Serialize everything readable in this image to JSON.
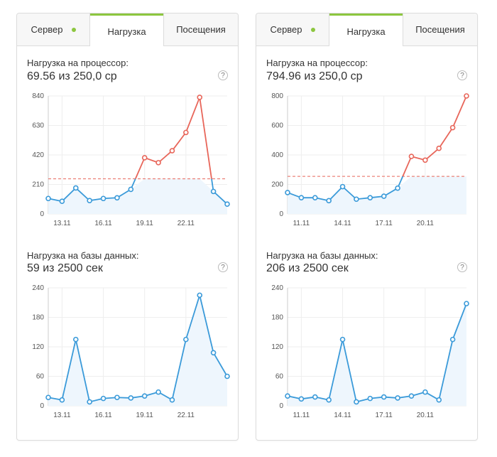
{
  "panels": [
    {
      "tabs": [
        {
          "label": "Сервер"
        },
        {
          "label": "Нагрузка"
        },
        {
          "label": "Посещения"
        }
      ],
      "active_tab": 1,
      "cpu": {
        "title": "Нагрузка на процессор:",
        "value": "69.56 из 250,0 ср",
        "help": "?"
      },
      "db": {
        "title": "Нагрузка на базы данных:",
        "value": "59 из 2500 сек",
        "help": "?"
      }
    },
    {
      "tabs": [
        {
          "label": "Сервер"
        },
        {
          "label": "Нагрузка"
        },
        {
          "label": "Посещения"
        }
      ],
      "active_tab": 1,
      "cpu": {
        "title": "Нагрузка на процессор:",
        "value": "794.96 из 250,0 ср",
        "help": "?"
      },
      "db": {
        "title": "Нагрузка на базы данных:",
        "value": "206 из 2500 сек",
        "help": "?"
      }
    }
  ],
  "colors": {
    "line": "#3a9ad9",
    "over": "#e8665a",
    "fill": "#eef6fd",
    "threshold": "#e8665a",
    "accent": "#8cc63f",
    "grid": "#eeeeee"
  },
  "chart_data": [
    {
      "type": "line",
      "ylim": [
        0,
        840
      ],
      "yticks": [
        0,
        210,
        420,
        630,
        840
      ],
      "xticks": [
        "13.11",
        "16.11",
        "19.11",
        "22.11"
      ],
      "xtick_index": [
        1,
        4,
        7,
        10
      ],
      "threshold": 250,
      "values": [
        110,
        90,
        185,
        95,
        110,
        115,
        175,
        400,
        365,
        450,
        580,
        830,
        160,
        70
      ]
    },
    {
      "type": "line",
      "ylim": [
        0,
        240
      ],
      "yticks": [
        0,
        60,
        120,
        180,
        240
      ],
      "xticks": [
        "13.11",
        "16.11",
        "19.11",
        "22.11"
      ],
      "xtick_index": [
        1,
        4,
        7,
        10
      ],
      "values": [
        17,
        12,
        135,
        8,
        15,
        17,
        16,
        20,
        28,
        12,
        135,
        225,
        108,
        60
      ]
    },
    {
      "type": "line",
      "ylim": [
        0,
        800
      ],
      "yticks": [
        0,
        200,
        400,
        600,
        800
      ],
      "xticks": [
        "11.11",
        "14.11",
        "17.11",
        "20.11"
      ],
      "xtick_index": [
        1,
        4,
        7,
        10
      ],
      "threshold": 255,
      "values": [
        145,
        110,
        110,
        90,
        185,
        100,
        110,
        120,
        175,
        390,
        365,
        445,
        585,
        800
      ]
    },
    {
      "type": "line",
      "ylim": [
        0,
        240
      ],
      "yticks": [
        0,
        60,
        120,
        180,
        240
      ],
      "xticks": [
        "11.11",
        "14.11",
        "17.11",
        "20.11"
      ],
      "xtick_index": [
        1,
        4,
        7,
        10
      ],
      "values": [
        20,
        14,
        18,
        12,
        135,
        8,
        15,
        18,
        16,
        20,
        28,
        12,
        135,
        208
      ]
    }
  ]
}
